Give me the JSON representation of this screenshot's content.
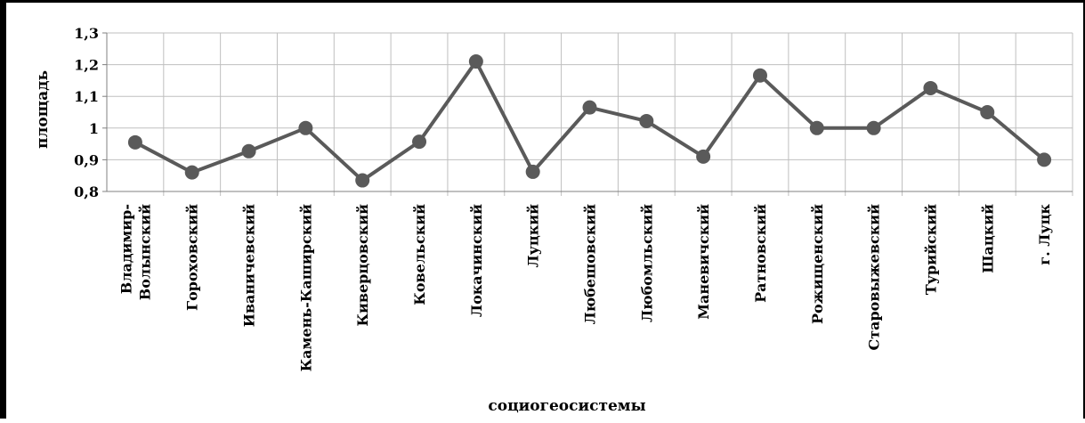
{
  "chart_data": {
    "type": "line",
    "xlabel": "социогеосистемы",
    "ylabel": "площадь",
    "ylim": [
      0.8,
      1.3
    ],
    "yticks": [
      0.8,
      0.9,
      1.0,
      1.1,
      1.2,
      1.3
    ],
    "ytick_labels": [
      "0,8",
      "0,9",
      "1",
      "1,1",
      "1,2",
      "1,3"
    ],
    "grid": true,
    "categories": [
      [
        "Владимир-",
        "Волынский"
      ],
      [
        "Гороховский"
      ],
      [
        "Иваничевский"
      ],
      [
        "Камень-Каширский"
      ],
      [
        "Киверцовский"
      ],
      [
        "Ковельский"
      ],
      [
        "Локачинский"
      ],
      [
        "Луцкий"
      ],
      [
        "Любешовский"
      ],
      [
        "Любомльский"
      ],
      [
        "Маневичский"
      ],
      [
        "Ратновский"
      ],
      [
        "Рожищенский"
      ],
      [
        "Старовыжевский"
      ],
      [
        "Турийский"
      ],
      [
        "Шацкий"
      ],
      [
        "г. Луцк"
      ]
    ],
    "series": [
      {
        "values": [
          0.955,
          0.86,
          0.927,
          1.0,
          0.835,
          0.957,
          1.21,
          0.862,
          1.065,
          1.022,
          0.91,
          1.166,
          1.0,
          1.0,
          1.126,
          1.05,
          0.9
        ]
      }
    ],
    "line_color": "#5a5a5a",
    "marker_color": "#5a5a5a",
    "grid_color": "#bfbfbf"
  }
}
